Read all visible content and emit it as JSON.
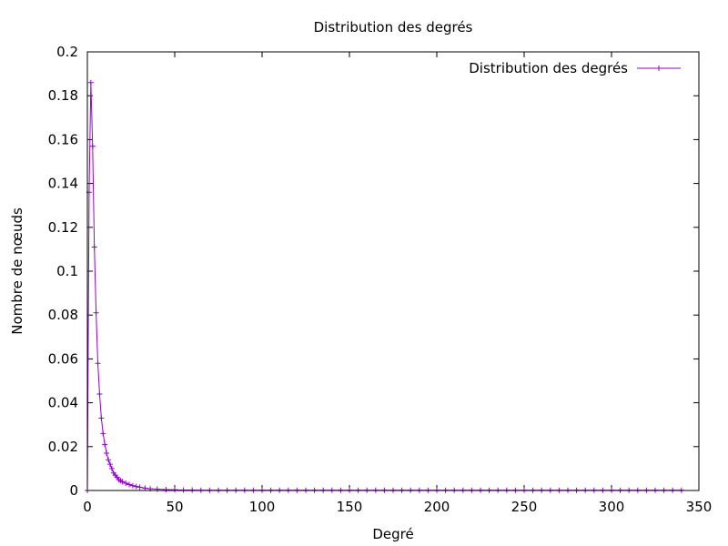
{
  "chart_data": {
    "type": "line",
    "title": "Distribution des degrés",
    "xlabel": "Degré",
    "ylabel": "Nombre de nœuds",
    "xlim": [
      0,
      350
    ],
    "ylim": [
      0,
      0.2
    ],
    "xticks": [
      0,
      50,
      100,
      150,
      200,
      250,
      300,
      350
    ],
    "yticks": [
      0,
      0.02,
      0.04,
      0.06,
      0.08,
      0.1,
      0.12,
      0.14,
      0.16,
      0.18,
      0.2
    ],
    "ytick_labels": [
      "0",
      "0.02",
      "0.04",
      "0.06",
      "0.08",
      "0.1",
      "0.12",
      "0.14",
      "0.16",
      "0.18",
      "0.2"
    ],
    "grid": false,
    "legend_position": "top-right",
    "marker": "plus",
    "series": [
      {
        "name": "Distribution des degrés",
        "color": "#9400d3",
        "x": [
          0,
          1,
          2,
          3,
          4,
          5,
          6,
          7,
          8,
          9,
          10,
          11,
          12,
          13,
          14,
          15,
          16,
          17,
          18,
          19,
          20,
          22,
          24,
          26,
          28,
          30,
          33,
          36,
          40,
          45,
          50,
          55,
          60,
          65,
          70,
          75,
          80,
          85,
          90,
          95,
          100,
          105,
          110,
          115,
          120,
          125,
          130,
          135,
          140,
          145,
          150,
          155,
          160,
          165,
          170,
          175,
          180,
          185,
          190,
          195,
          200,
          205,
          210,
          215,
          220,
          225,
          230,
          235,
          240,
          245,
          250,
          255,
          260,
          265,
          270,
          275,
          280,
          285,
          290,
          295,
          300,
          305,
          310,
          315,
          320,
          325,
          330,
          335,
          340
        ],
        "y": [
          0.0,
          0.136,
          0.186,
          0.157,
          0.111,
          0.081,
          0.058,
          0.044,
          0.033,
          0.026,
          0.021,
          0.017,
          0.014,
          0.012,
          0.01,
          0.008,
          0.007,
          0.006,
          0.005,
          0.0045,
          0.004,
          0.0033,
          0.0027,
          0.0022,
          0.0018,
          0.0015,
          0.0011,
          0.0008,
          0.0006,
          0.0004,
          0.0003,
          0.0002,
          0.0002,
          0.0001,
          0.0001,
          0.0001,
          0.0001,
          0.0001,
          0.0001,
          0.0001,
          0.0001,
          0.0001,
          0.0001,
          0.0001,
          0.0001,
          0.0001,
          0.0001,
          0.0001,
          0.0001,
          0.0001,
          0.0001,
          0.0001,
          0.0001,
          0.0001,
          0.0001,
          0.0001,
          0.0001,
          0.0001,
          0.0001,
          0.0001,
          0.0001,
          0.0001,
          0.0001,
          0.0001,
          0.0001,
          0.0001,
          0.0001,
          0.0001,
          0.0001,
          0.0001,
          0.0001,
          0.0001,
          0.0001,
          0.0001,
          0.0001,
          0.0001,
          0.0001,
          0.0001,
          0.0001,
          0.0001,
          0.0001,
          0.0001,
          0.0001,
          0.0001,
          0.0001,
          0.0001,
          0.0001,
          0.0001,
          0.0001
        ]
      }
    ]
  }
}
